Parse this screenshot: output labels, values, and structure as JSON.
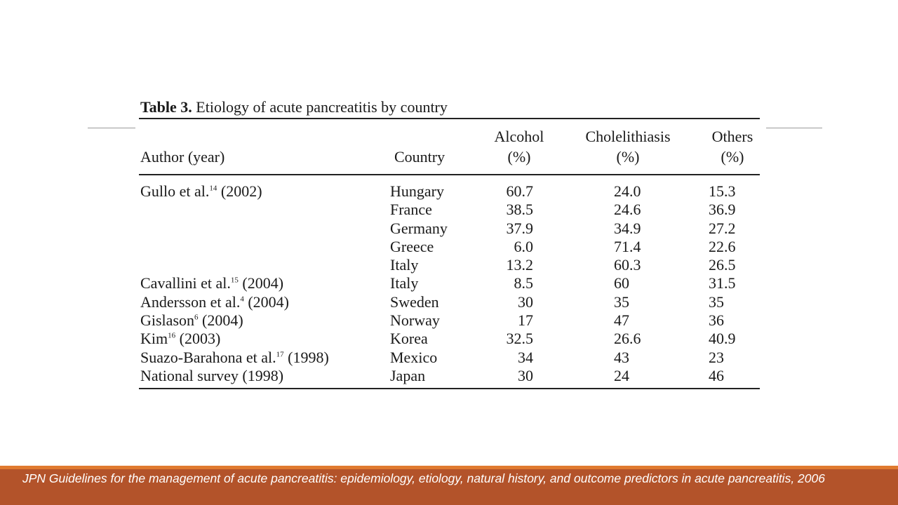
{
  "table": {
    "caption_label": "Table 3.",
    "caption_text": "Etiology of acute pancreatitis by country",
    "headers": {
      "author": "Author (year)",
      "country": "Country",
      "alcohol_1": "Alcohol",
      "alcohol_2": "(%)",
      "chol_1": "Cholelithiasis",
      "chol_2": "(%)",
      "others_1": "Others",
      "others_2": "(%)"
    },
    "rows": [
      {
        "author": "Gullo et al.",
        "ref": "14",
        "year": "(2002)",
        "country": "Hungary",
        "alcohol": "60.7",
        "chol": "24.0",
        "others": "15.3"
      },
      {
        "author": "",
        "ref": "",
        "year": "",
        "country": "France",
        "alcohol": "38.5",
        "chol": "24.6",
        "others": "36.9"
      },
      {
        "author": "",
        "ref": "",
        "year": "",
        "country": "Germany",
        "alcohol": "37.9",
        "chol": "34.9",
        "others": "27.2"
      },
      {
        "author": "",
        "ref": "",
        "year": "",
        "country": "Greece",
        "alcohol": "6.0",
        "chol": "71.4",
        "others": "22.6"
      },
      {
        "author": "",
        "ref": "",
        "year": "",
        "country": "Italy",
        "alcohol": "13.2",
        "chol": "60.3",
        "others": "26.5"
      },
      {
        "author": "Cavallini et al.",
        "ref": "15",
        "year": "(2004)",
        "country": "Italy",
        "alcohol": "8.5",
        "chol": "60",
        "others": "31.5"
      },
      {
        "author": "Andersson et al.",
        "ref": "4",
        "year": "(2004)",
        "country": "Sweden",
        "alcohol": "30",
        "chol": "35",
        "others": "35"
      },
      {
        "author": "Gislason",
        "ref": "6",
        "year": "(2004)",
        "country": "Norway",
        "alcohol": "17",
        "chol": "47",
        "others": "36"
      },
      {
        "author": "Kim",
        "ref": "16",
        "year": "(2003)",
        "country": "Korea",
        "alcohol": "32.5",
        "chol": "26.6",
        "others": "40.9"
      },
      {
        "author": "Suazo-Barahona et al.",
        "ref": "17",
        "year": "(1998)",
        "country": "Mexico",
        "alcohol": "34",
        "chol": "43",
        "others": "23"
      },
      {
        "author": "National survey (1998)",
        "ref": "",
        "year": "",
        "country": "Japan",
        "alcohol": "30",
        "chol": "24",
        "others": "46"
      }
    ]
  },
  "footer": {
    "citation": "JPN Guidelines for the management of acute pancreatitis: epidemiology, etiology, natural history, and outcome predictors in acute pancreatitis, 2006"
  },
  "colors": {
    "footer_bg": "#b3532a",
    "footer_accent": "#e07a2f"
  }
}
